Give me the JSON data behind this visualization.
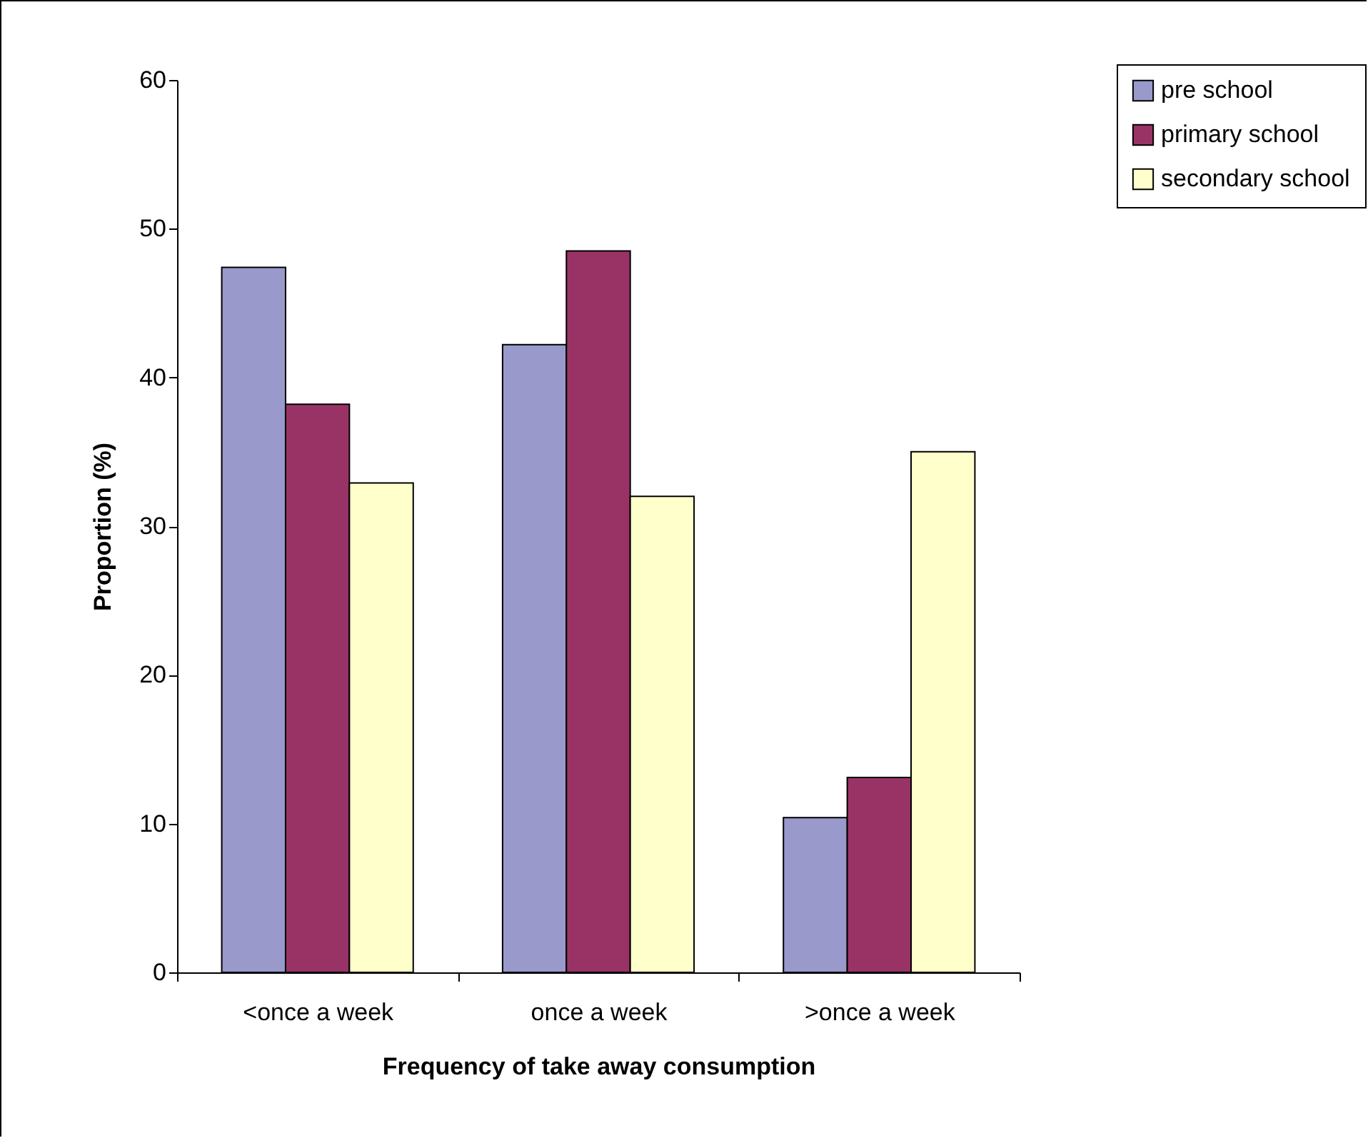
{
  "chart_data": {
    "type": "bar",
    "xlabel": "Frequency of take away consumption",
    "ylabel": "Proportion (%)",
    "categories": [
      "<once a week",
      "once a week",
      ">once a week"
    ],
    "series": [
      {
        "name": "pre school",
        "color": "#9999cc",
        "values": [
          47.4,
          42.2,
          10.4
        ]
      },
      {
        "name": "primary school",
        "color": "#993366",
        "values": [
          38.2,
          48.5,
          13.1
        ]
      },
      {
        "name": "secondary school",
        "color": "#ffffcc",
        "values": [
          32.9,
          32.0,
          35.0
        ]
      }
    ],
    "ylim": [
      0,
      60
    ],
    "yticks": [
      0,
      10,
      20,
      30,
      40,
      50,
      60
    ],
    "legend": "top right"
  }
}
